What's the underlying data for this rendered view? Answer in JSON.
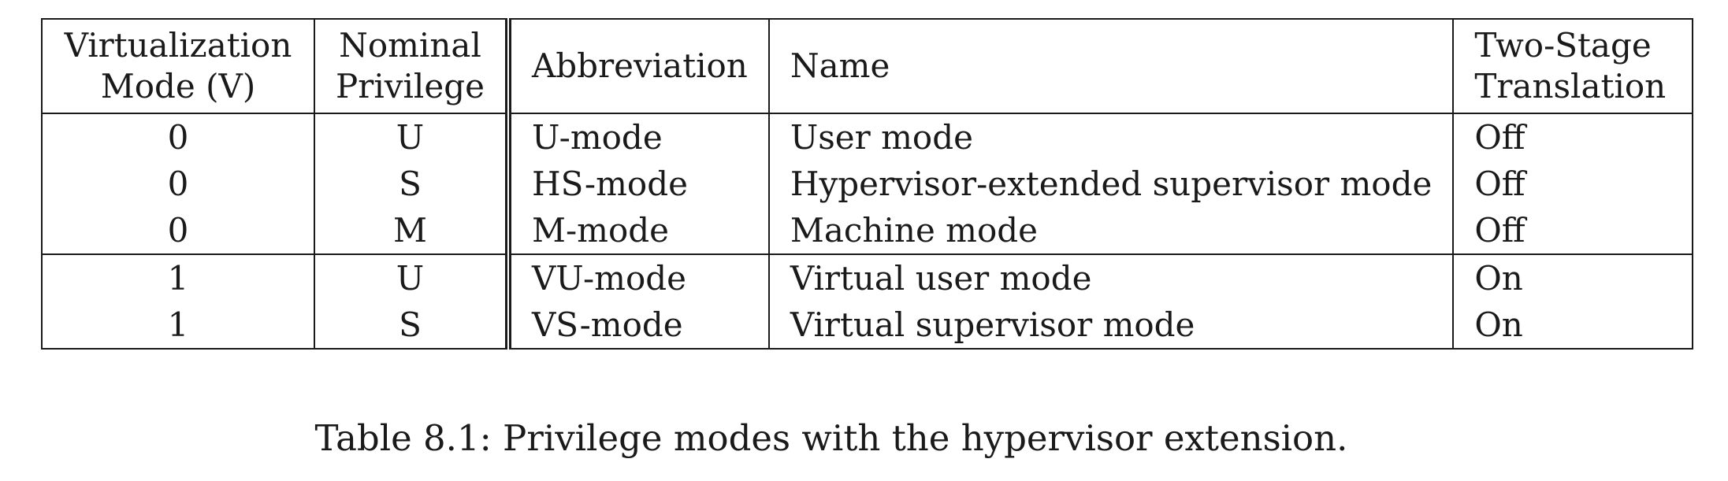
{
  "table": {
    "headers": {
      "virtualization_mode": [
        "Virtualization",
        "Mode (V)"
      ],
      "nominal_privilege": [
        "Nominal",
        "Privilege"
      ],
      "abbreviation": "Abbreviation",
      "name": "Name",
      "two_stage_translation": [
        "Two-Stage",
        "Translation"
      ]
    },
    "groups": [
      {
        "rows": [
          {
            "v": "0",
            "privilege": "U",
            "abbreviation": "U-mode",
            "name": "User mode",
            "two_stage": "Off"
          },
          {
            "v": "0",
            "privilege": "S",
            "abbreviation": "HS-mode",
            "name": "Hypervisor-extended supervisor mode",
            "two_stage": "Off"
          },
          {
            "v": "0",
            "privilege": "M",
            "abbreviation": "M-mode",
            "name": "Machine mode",
            "two_stage": "Off"
          }
        ]
      },
      {
        "rows": [
          {
            "v": "1",
            "privilege": "U",
            "abbreviation": "VU-mode",
            "name": "Virtual user mode",
            "two_stage": "On"
          },
          {
            "v": "1",
            "privilege": "S",
            "abbreviation": "VS-mode",
            "name": "Virtual supervisor mode",
            "two_stage": "On"
          }
        ]
      }
    ]
  },
  "caption": "Table 8.1: Privilege modes with the hypervisor extension."
}
